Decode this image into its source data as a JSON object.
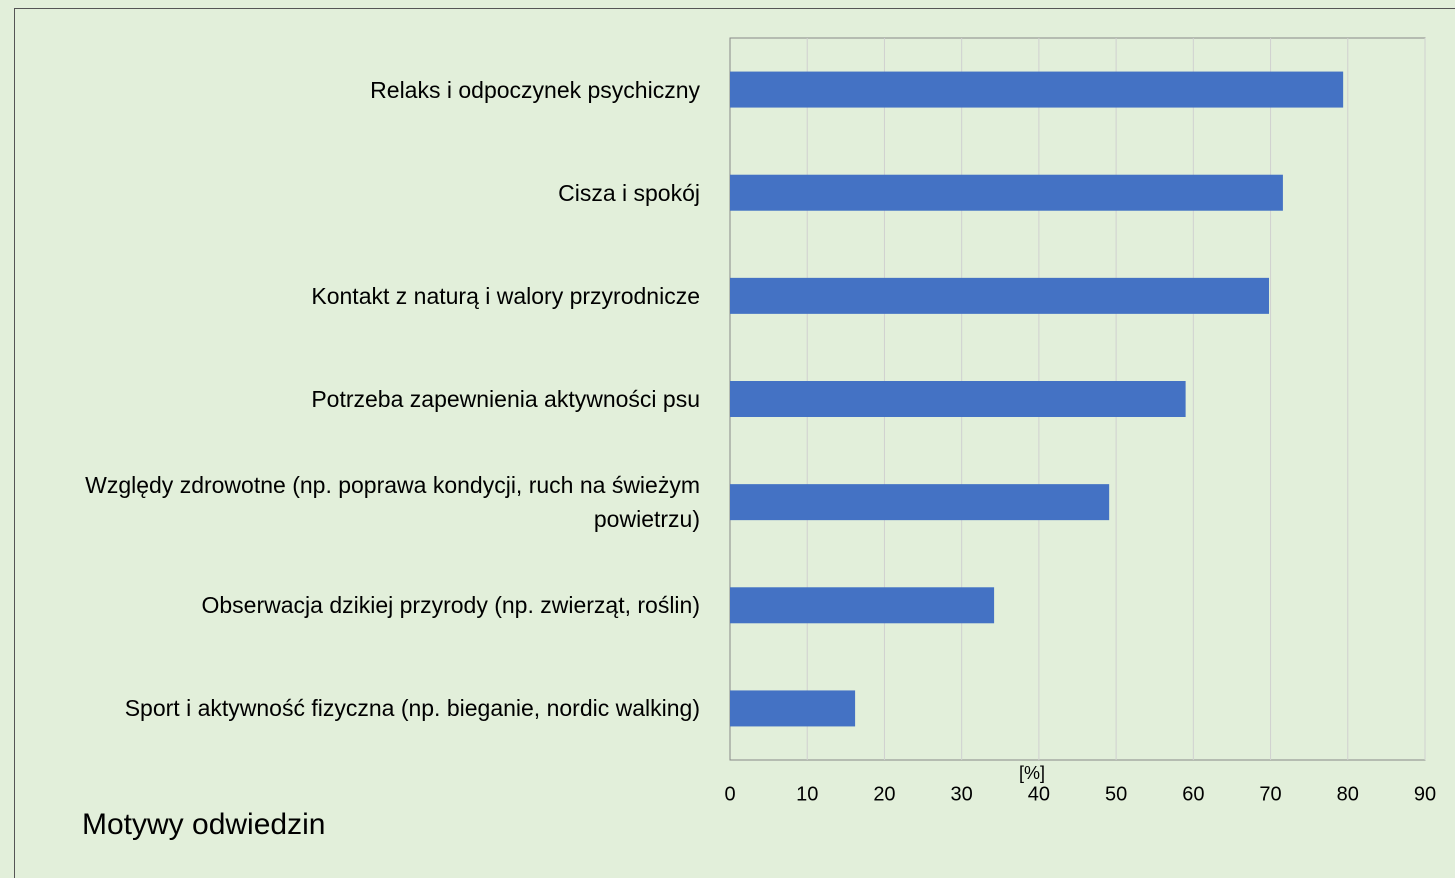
{
  "chart_data": {
    "type": "bar",
    "orientation": "horizontal",
    "title": "Motywy odwiedzin",
    "x_label": "[%]",
    "categories": [
      "Relaks i odpoczynek psychiczny",
      "Cisza i spokój",
      "Kontakt z naturą i walory przyrodnicze",
      "Potrzeba zapewnienia aktywności psu",
      "Względy zdrowotne (np. poprawa kondycji, ruch na świeżym powietrzu)",
      "Obserwacja dzikiej przyrody (np. zwierząt, roślin)",
      "Sport i aktywność fizyczna (np. bieganie, nordic walking)"
    ],
    "values": [
      79.4,
      71.6,
      69.8,
      59.0,
      49.1,
      34.2,
      16.2
    ],
    "color": "#4472c4",
    "xlim": [
      0,
      90
    ],
    "xticks": [
      0,
      10,
      20,
      30,
      40,
      50,
      60,
      70,
      80,
      90
    ],
    "grid": true
  }
}
